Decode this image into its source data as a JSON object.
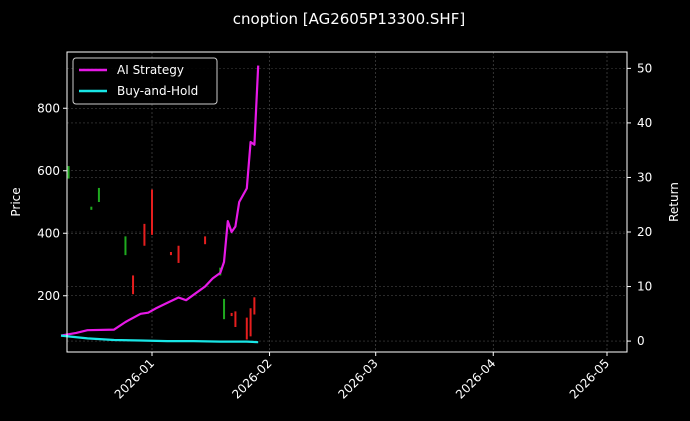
{
  "chart_data": {
    "type": "line",
    "title": "cnoption [AG2605P13300.SHF]",
    "xlabel": "",
    "ylabel": "Price",
    "ylabel_right": "Return",
    "x_ticks": [
      "2026-01",
      "2026-02",
      "2026-03",
      "2026-04",
      "2026-05"
    ],
    "y_ticks_left": [
      200,
      400,
      600,
      800
    ],
    "y_ticks_right": [
      0,
      10,
      20,
      30,
      40,
      50
    ],
    "ylim_left": [
      20,
      980
    ],
    "ylim_right": [
      -2,
      53
    ],
    "grid": true,
    "legend_position": "upper left",
    "series": [
      {
        "name": "AI Strategy",
        "axis": "right",
        "color": "#e619e6",
        "x": [
          "2025-12-08",
          "2025-12-12",
          "2025-12-15",
          "2025-12-22",
          "2025-12-25",
          "2025-12-29",
          "2025-12-31",
          "2026-01-02",
          "2026-01-05",
          "2026-01-08",
          "2026-01-10",
          "2026-01-12",
          "2026-01-15",
          "2026-01-17",
          "2026-01-19",
          "2026-01-20",
          "2026-01-21",
          "2026-01-22",
          "2026-01-23",
          "2026-01-24",
          "2026-01-26",
          "2026-01-27",
          "2026-01-28",
          "2026-01-29"
        ],
        "values": [
          1.0,
          1.5,
          2.0,
          2.1,
          3.5,
          5.0,
          5.2,
          6.0,
          7.0,
          8.0,
          7.5,
          8.5,
          10.0,
          11.5,
          12.5,
          14.5,
          22.0,
          20.0,
          21.0,
          25.5,
          28.0,
          36.5,
          36.0,
          50.5
        ]
      },
      {
        "name": "Buy-and-Hold",
        "axis": "right",
        "color": "#19e6e6",
        "x": [
          "2025-12-08",
          "2025-12-15",
          "2025-12-22",
          "2025-12-29",
          "2026-01-05",
          "2026-01-12",
          "2026-01-19",
          "2026-01-26",
          "2026-01-29"
        ],
        "values": [
          1.0,
          0.5,
          0.2,
          0.1,
          0.0,
          0.0,
          -0.1,
          -0.1,
          -0.2
        ]
      }
    ],
    "candles": [
      {
        "x": "2025-12-10",
        "low": 575,
        "high": 615,
        "color": "#1faa1f"
      },
      {
        "x": "2025-12-18",
        "low": 500,
        "high": 545,
        "color": "#1faa1f"
      },
      {
        "x": "2025-12-16",
        "low": 475,
        "high": 485,
        "color": "#1faa1f"
      },
      {
        "x": "2025-12-25",
        "low": 330,
        "high": 390,
        "color": "#1faa1f"
      },
      {
        "x": "2025-12-27",
        "low": 205,
        "high": 265,
        "color": "#e61e1e"
      },
      {
        "x": "2025-12-30",
        "low": 360,
        "high": 430,
        "color": "#e61e1e"
      },
      {
        "x": "2026-01-01",
        "low": 395,
        "high": 540,
        "color": "#e61e1e"
      },
      {
        "x": "2026-01-06",
        "low": 330,
        "high": 340,
        "color": "#e61e1e"
      },
      {
        "x": "2026-01-08",
        "low": 305,
        "high": 360,
        "color": "#e61e1e"
      },
      {
        "x": "2026-01-15",
        "low": 365,
        "high": 390,
        "color": "#e61e1e"
      },
      {
        "x": "2026-01-19",
        "low": 265,
        "high": 290,
        "color": "#1faa1f"
      },
      {
        "x": "2026-01-20",
        "low": 125,
        "high": 190,
        "color": "#1faa1f"
      },
      {
        "x": "2026-01-22",
        "low": 135,
        "high": 145,
        "color": "#e61e1e"
      },
      {
        "x": "2026-01-23",
        "low": 100,
        "high": 150,
        "color": "#e61e1e"
      },
      {
        "x": "2026-01-26",
        "low": 60,
        "high": 130,
        "color": "#e61e1e"
      },
      {
        "x": "2026-01-27",
        "low": 70,
        "high": 160,
        "color": "#e61e1e"
      },
      {
        "x": "2026-01-28",
        "low": 140,
        "high": 195,
        "color": "#e61e1e"
      }
    ]
  },
  "legend": {
    "items": [
      {
        "label": "AI Strategy",
        "color": "#e619e6"
      },
      {
        "label": "Buy-and-Hold",
        "color": "#19e6e6"
      }
    ]
  }
}
